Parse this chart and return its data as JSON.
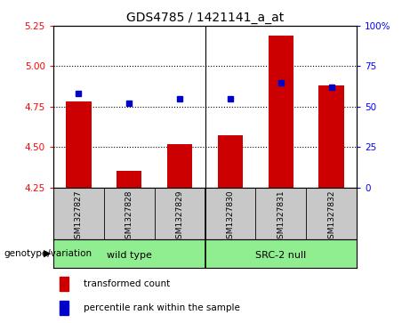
{
  "title": "GDS4785 / 1421141_a_at",
  "samples": [
    "GSM1327827",
    "GSM1327828",
    "GSM1327829",
    "GSM1327830",
    "GSM1327831",
    "GSM1327832"
  ],
  "red_values": [
    4.78,
    4.35,
    4.52,
    4.57,
    5.19,
    4.88
  ],
  "blue_values": [
    58,
    52,
    55,
    55,
    65,
    62
  ],
  "ylim_left": [
    4.25,
    5.25
  ],
  "ylim_right": [
    0,
    100
  ],
  "yticks_left": [
    4.25,
    4.5,
    4.75,
    5.0,
    5.25
  ],
  "yticks_right": [
    0,
    25,
    50,
    75,
    100
  ],
  "ytick_labels_right": [
    "0",
    "25",
    "50",
    "75",
    "100%"
  ],
  "hlines": [
    4.5,
    4.75,
    5.0
  ],
  "wild_type_indices": [
    0,
    1,
    2
  ],
  "src2_null_indices": [
    3,
    4,
    5
  ],
  "wild_type_label": "wild type",
  "src2_null_label": "SRC-2 null",
  "group_label": "genotype/variation",
  "legend_red": "transformed count",
  "legend_blue": "percentile rank within the sample",
  "bar_color": "#CC0000",
  "dot_color": "#0000CC",
  "sample_bg_color": "#C8C8C8",
  "wt_color": "#90EE90",
  "src_color": "#90EE90",
  "plot_bg": "#FFFFFF",
  "bar_width": 0.5
}
